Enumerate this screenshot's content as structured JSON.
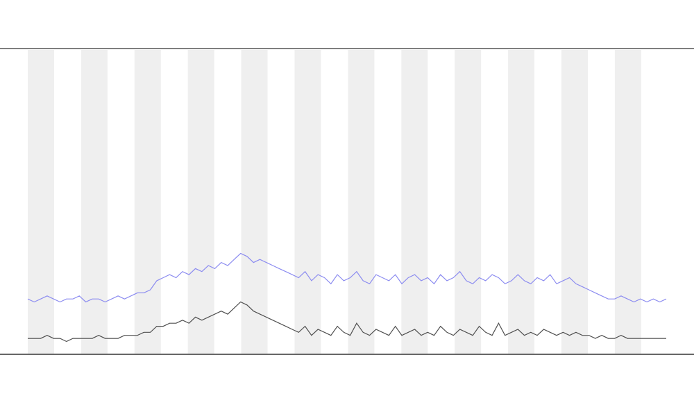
{
  "chart_data": {
    "type": "line",
    "ylim": [
      0,
      1
    ],
    "series": [
      {
        "color": "#8c8cf0",
        "values": [
          0.18,
          0.17,
          0.18,
          0.19,
          0.18,
          0.17,
          0.18,
          0.18,
          0.19,
          0.17,
          0.18,
          0.18,
          0.17,
          0.18,
          0.19,
          0.18,
          0.19,
          0.2,
          0.2,
          0.21,
          0.24,
          0.25,
          0.26,
          0.25,
          0.27,
          0.26,
          0.28,
          0.27,
          0.29,
          0.28,
          0.3,
          0.29,
          0.31,
          0.33,
          0.32,
          0.3,
          0.31,
          0.3,
          0.29,
          0.28,
          0.27,
          0.26,
          0.25,
          0.27,
          0.24,
          0.26,
          0.25,
          0.23,
          0.26,
          0.24,
          0.25,
          0.27,
          0.24,
          0.23,
          0.26,
          0.25,
          0.24,
          0.26,
          0.23,
          0.25,
          0.26,
          0.24,
          0.25,
          0.23,
          0.26,
          0.24,
          0.25,
          0.27,
          0.24,
          0.23,
          0.25,
          0.24,
          0.26,
          0.25,
          0.23,
          0.24,
          0.26,
          0.24,
          0.23,
          0.25,
          0.24,
          0.26,
          0.23,
          0.24,
          0.25,
          0.23,
          0.22,
          0.21,
          0.2,
          0.19,
          0.18,
          0.18,
          0.19,
          0.18,
          0.17,
          0.18,
          0.17,
          0.18,
          0.17,
          0.18
        ]
      },
      {
        "color": "#505050",
        "values": [
          0.05,
          0.05,
          0.05,
          0.06,
          0.05,
          0.05,
          0.04,
          0.05,
          0.05,
          0.05,
          0.05,
          0.06,
          0.05,
          0.05,
          0.05,
          0.06,
          0.06,
          0.06,
          0.07,
          0.07,
          0.09,
          0.09,
          0.1,
          0.1,
          0.11,
          0.1,
          0.12,
          0.11,
          0.12,
          0.13,
          0.14,
          0.13,
          0.15,
          0.17,
          0.16,
          0.14,
          0.13,
          0.12,
          0.11,
          0.1,
          0.09,
          0.08,
          0.07,
          0.09,
          0.06,
          0.08,
          0.07,
          0.06,
          0.09,
          0.07,
          0.06,
          0.1,
          0.07,
          0.06,
          0.08,
          0.07,
          0.06,
          0.09,
          0.06,
          0.07,
          0.08,
          0.06,
          0.07,
          0.06,
          0.09,
          0.07,
          0.06,
          0.08,
          0.07,
          0.06,
          0.09,
          0.07,
          0.06,
          0.1,
          0.06,
          0.07,
          0.08,
          0.06,
          0.07,
          0.06,
          0.08,
          0.07,
          0.06,
          0.07,
          0.06,
          0.07,
          0.06,
          0.06,
          0.05,
          0.06,
          0.05,
          0.05,
          0.06,
          0.05,
          0.05,
          0.05,
          0.05,
          0.05,
          0.05,
          0.05
        ]
      }
    ]
  }
}
